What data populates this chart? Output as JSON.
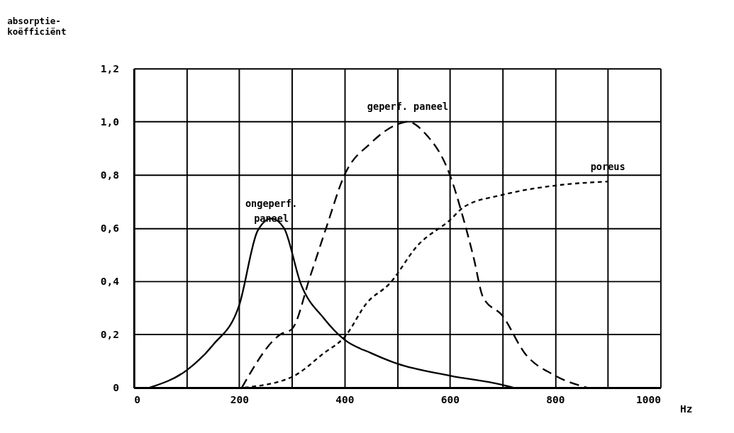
{
  "chart_data": {
    "type": "line",
    "ylabel": "absorptie-\nkoëfficiënt",
    "xlabel": "Hz",
    "xlim": [
      0,
      1000
    ],
    "ylim": [
      0,
      1.2
    ],
    "xticks": [
      0,
      {
        "value": 100,
        "label": null
      },
      200,
      {
        "value": 300,
        "label": null
      },
      400,
      {
        "value": 500,
        "label": null
      },
      600,
      {
        "value": 700,
        "label": null
      },
      800,
      {
        "value": 900,
        "label": null
      },
      1000
    ],
    "yticks": [
      0,
      {
        "value": 0.2,
        "label": "0,2"
      },
      {
        "value": 0.4,
        "label": "0,4"
      },
      {
        "value": 0.6,
        "label": "0,6"
      },
      {
        "value": 0.8,
        "label": "0,8"
      },
      {
        "value": 1.0,
        "label": "1,0"
      },
      {
        "value": 1.2,
        "label": "1,2"
      }
    ],
    "grid": true,
    "marker": "none",
    "series": [
      {
        "name": "ongeperf.\npaneel",
        "color": "#000000",
        "line_style": "solid",
        "x": [
          30,
          100,
          150,
          200,
          235,
          261,
          285,
          317,
          361,
          400,
          450,
          500,
          600,
          700,
          720
        ],
        "values": [
          0,
          0.065,
          0.16,
          0.31,
          0.59,
          0.636,
          0.6,
          0.39,
          0.26,
          0.18,
          0.13,
          0.09,
          0.045,
          0.01,
          0
        ]
      },
      {
        "name": "geperf. paneel",
        "color": "#000000",
        "line_style": "dashed",
        "x": [
          205,
          278,
          300,
          335,
          365,
          400,
          450,
          500,
          520,
          553,
          600,
          625,
          645,
          663,
          700,
          742,
          800,
          860
        ],
        "values": [
          0,
          0.2,
          0.22,
          0.42,
          0.6,
          0.8,
          0.92,
          0.99,
          1.0,
          0.956,
          0.8,
          0.64,
          0.49,
          0.34,
          0.27,
          0.13,
          0.045,
          0
        ]
      },
      {
        "name": "poreus",
        "color": "#000000",
        "line_style": "dotted",
        "x": [
          210,
          300,
          361,
          400,
          443,
          485,
          539,
          600,
          627,
          700,
          800,
          900
        ],
        "values": [
          0,
          0.04,
          0.13,
          0.19,
          0.32,
          0.39,
          0.535,
          0.63,
          0.68,
          0.725,
          0.76,
          0.775
        ]
      }
    ]
  }
}
